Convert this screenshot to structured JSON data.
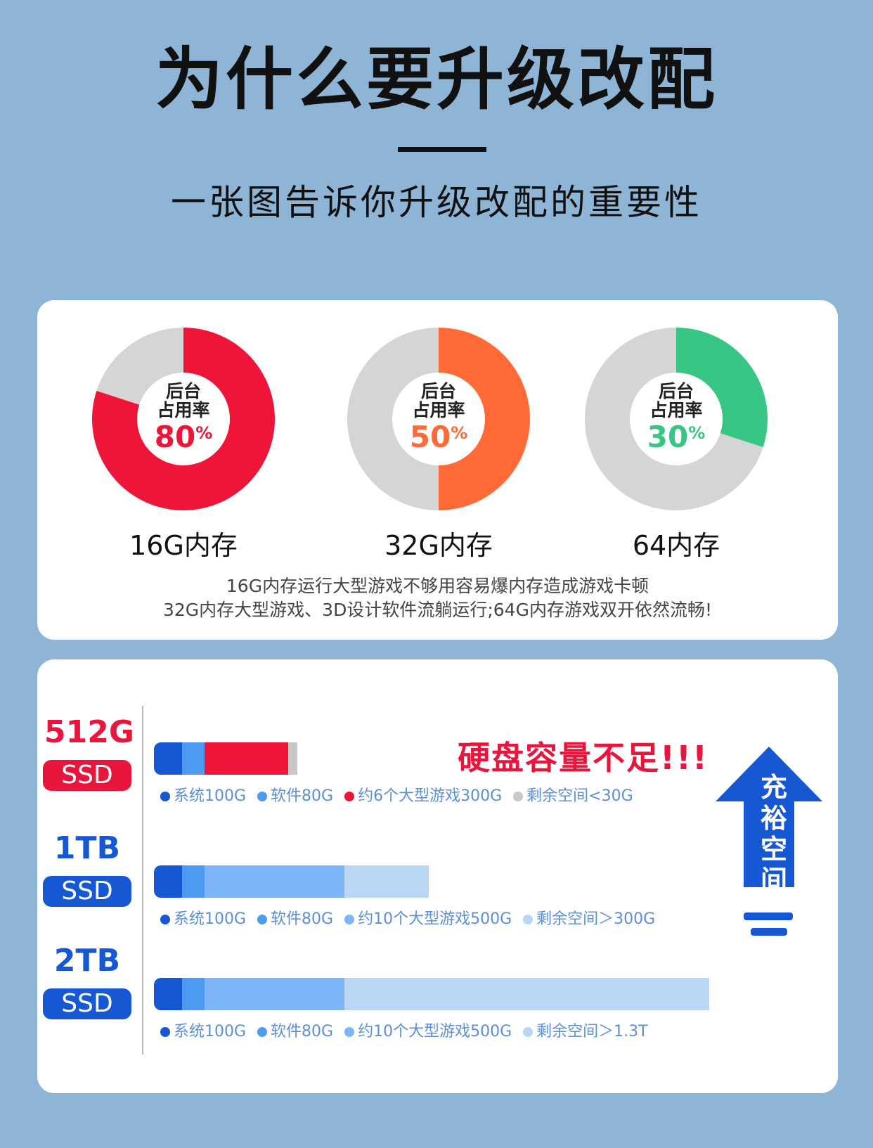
{
  "header": {
    "title": "为什么要升级改配",
    "subtitle": "一张图告诉你升级改配的重要性"
  },
  "memory_section": {
    "center_label_line1": "后台",
    "center_label_line2": "占用率",
    "percent_sign": "%",
    "notes": [
      "16G内存运行大型游戏不够用容易爆内存造成游戏卡顿",
      "32G内存大型游戏、3D设计软件流躺运行;64G内存游戏双开依然流畅!"
    ]
  },
  "storage_section": {
    "warning": "硬盘容量不足!!!",
    "arrow_text": "充裕空间"
  },
  "colors": {
    "red": "#ef1538",
    "orange": "#ff6a37",
    "green": "#37c684",
    "ring_gray": "#d5d5d5",
    "blue_dark": "#1657d3",
    "blue_mid": "#4d9af2",
    "blue_light": "#7cb6f8",
    "blue_pale": "#bad6f5",
    "gray_rest": "#c8c8c8"
  },
  "chart_data": [
    {
      "type": "pie",
      "title": "16G内存",
      "slices": [
        {
          "label": "后台占用率",
          "value": 80,
          "color": "#ef1538"
        },
        {
          "label": "",
          "value": 20,
          "color": "#d5d5d5"
        }
      ],
      "display_value": "80"
    },
    {
      "type": "pie",
      "title": "32G内存",
      "slices": [
        {
          "label": "后台占用率",
          "value": 50,
          "color": "#ff6a37"
        },
        {
          "label": "",
          "value": 50,
          "color": "#d5d5d5"
        }
      ],
      "display_value": "50"
    },
    {
      "type": "pie",
      "title": "64内存",
      "slices": [
        {
          "label": "后台占用率",
          "value": 30,
          "color": "#37c684"
        },
        {
          "label": "",
          "value": 70,
          "color": "#d5d5d5"
        }
      ],
      "display_value": "30"
    },
    {
      "type": "bar",
      "orientation": "horizontal-stacked",
      "categories": [
        "512G SSD",
        "1TB SSD",
        "2TB SSD"
      ],
      "capacity_labels": [
        {
          "size": "512G",
          "kind": "SSD",
          "color": "#e8163c"
        },
        {
          "size": "1TB",
          "kind": "SSD",
          "color": "#1657d3"
        },
        {
          "size": "2TB",
          "kind": "SSD",
          "color": "#1657d3"
        }
      ],
      "series": [
        {
          "name": "系统",
          "values": [
            100,
            100,
            100
          ]
        },
        {
          "name": "软件",
          "values": [
            80,
            80,
            80
          ]
        },
        {
          "name": "大型游戏",
          "values": [
            300,
            500,
            500
          ]
        },
        {
          "name": "剩余空间",
          "values": [
            30,
            300,
            1300
          ]
        }
      ],
      "segment_colors": [
        [
          "#1657d3",
          "#4d9af2",
          "#ef1538",
          "#c8c8c8"
        ],
        [
          "#1657d3",
          "#4d9af2",
          "#7cb6f8",
          "#bad6f5"
        ],
        [
          "#1657d3",
          "#4d9af2",
          "#7cb6f8",
          "#bad6f5"
        ]
      ],
      "legends": [
        [
          "系统100G",
          "软件80G",
          "约6个大型游戏300G",
          "剩余空间<30G"
        ],
        [
          "系统100G",
          "软件80G",
          "约10个大型游戏500G",
          "剩余空间＞300G"
        ],
        [
          "系统100G",
          "软件80G",
          "约10个大型游戏500G",
          "剩余空间＞1.3T"
        ]
      ]
    }
  ]
}
